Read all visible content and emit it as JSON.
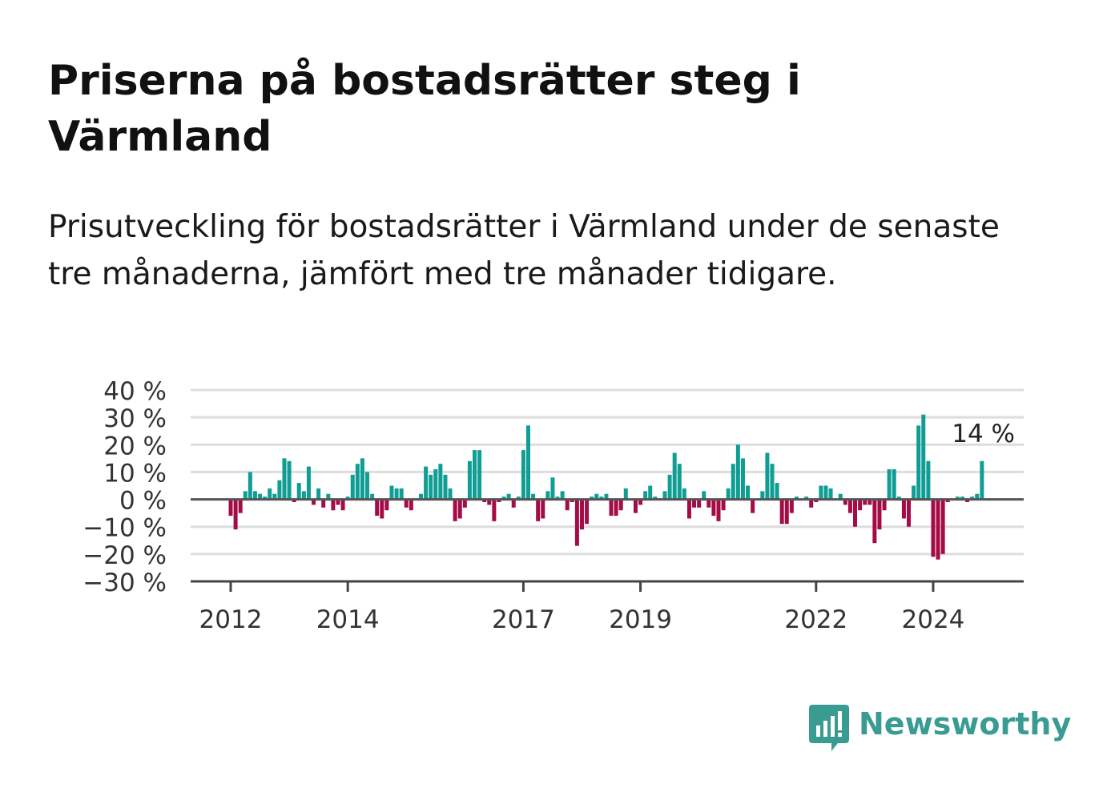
{
  "title": "Priserna på bostadsrätter steg i Värmland",
  "subtitle": "Prisutveckling för bostadsrätter i Värmland under de senaste tre månaderna, jämfört med tre månader tidigare.",
  "brand": {
    "name": "Newsworthy",
    "icon": "newsworthy-logo-icon",
    "color": "#3a9b93"
  },
  "colors": {
    "positive": "#0f9d94",
    "negative": "#a50b46",
    "grid": "#dddddd",
    "axis": "#444444"
  },
  "chart_data": {
    "type": "bar",
    "x_start": "2012-01",
    "x_step": "month",
    "x_tick_labels": [
      "2012",
      "2014",
      "2017",
      "2019",
      "2022",
      "2024"
    ],
    "y_tick_labels": [
      "40 %",
      "30 %",
      "20 %",
      "10 %",
      "0 %",
      "−10 %",
      "−20 %",
      "−30 %"
    ],
    "ylim": [
      -30,
      40
    ],
    "grid": true,
    "last_value_label": "14 %",
    "values": [
      -6,
      -11,
      -5,
      3,
      10,
      3,
      2,
      1,
      4,
      2,
      7,
      15,
      14,
      -1,
      6,
      3,
      12,
      -2,
      4,
      -3,
      2,
      -4,
      -2,
      -4,
      1,
      9,
      13,
      15,
      10,
      2,
      -6,
      -7,
      -4,
      5,
      4,
      4,
      -3,
      -4,
      0,
      2,
      12,
      9,
      11,
      13,
      9,
      4,
      -8,
      -7,
      -3,
      14,
      18,
      18,
      -1,
      -2,
      -8,
      -1,
      1,
      2,
      -3,
      1,
      18,
      27,
      2,
      -8,
      -7,
      3,
      8,
      1,
      3,
      -4,
      -1,
      -17,
      -11,
      -9,
      1,
      2,
      1,
      2,
      -6,
      -6,
      -4,
      4,
      0,
      -5,
      -2,
      3,
      5,
      1,
      0,
      3,
      9,
      17,
      13,
      4,
      -7,
      -3,
      -3,
      3,
      -3,
      -6,
      -8,
      -4,
      4,
      13,
      20,
      15,
      5,
      -5,
      0,
      3,
      17,
      13,
      6,
      -9,
      -9,
      -5,
      1,
      0,
      1,
      -3,
      -1,
      5,
      5,
      4,
      0,
      2,
      -2,
      -5,
      -10,
      -4,
      -2,
      -2,
      -16,
      -11,
      -4,
      11,
      11,
      1,
      -7,
      -10,
      5,
      27,
      31,
      14,
      -21,
      -22,
      -20,
      -1,
      0,
      1,
      1,
      -1,
      1,
      2,
      14
    ]
  }
}
